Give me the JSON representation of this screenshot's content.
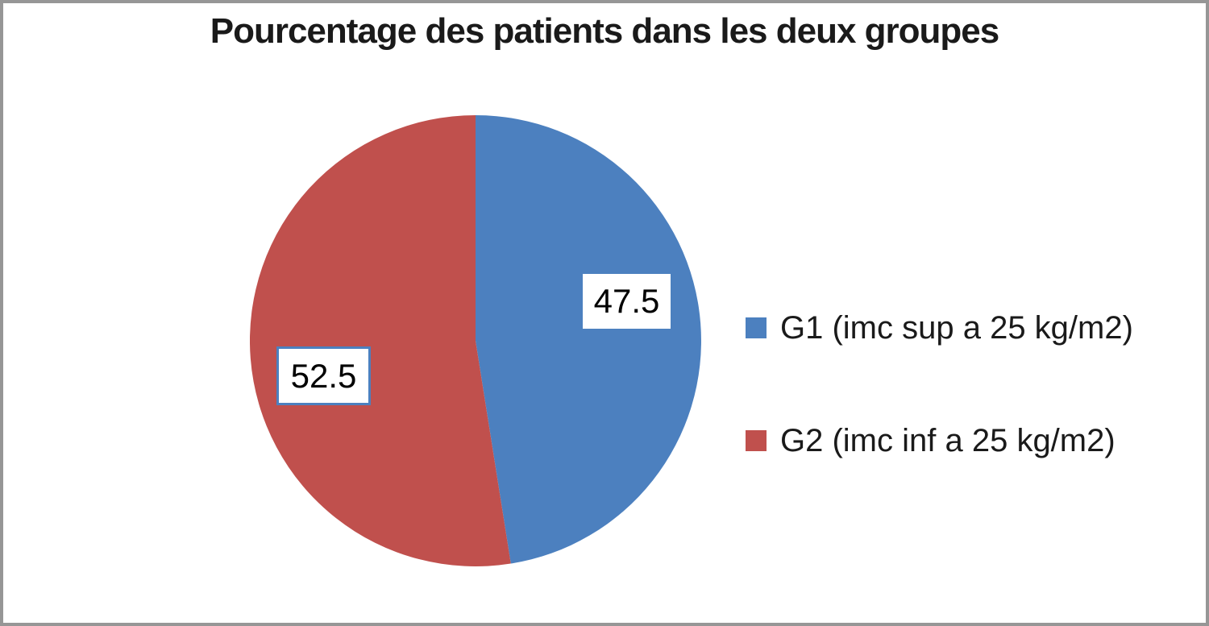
{
  "frame": {
    "border_color": "#969696",
    "background_color": "#ffffff"
  },
  "chart_data": {
    "type": "pie",
    "title": "Pourcentage des patients dans les deux groupes",
    "start_angle_deg": 0,
    "direction": "clockwise",
    "legend_position": "right",
    "total": 100,
    "series": [
      {
        "name": "G1",
        "label": "G1 (imc sup a 25 kg/m2)",
        "value": 47.5,
        "data_label": "47.5",
        "color": "#4C80BF",
        "data_label_box": "white, no border"
      },
      {
        "name": "G2",
        "label": "G2 (imc inf a 25 kg/m2)",
        "value": 52.5,
        "data_label": "52.5",
        "color": "#C0504D",
        "data_label_box": "white, blue selection border"
      }
    ],
    "selection_border_color": "#4C80BF"
  }
}
